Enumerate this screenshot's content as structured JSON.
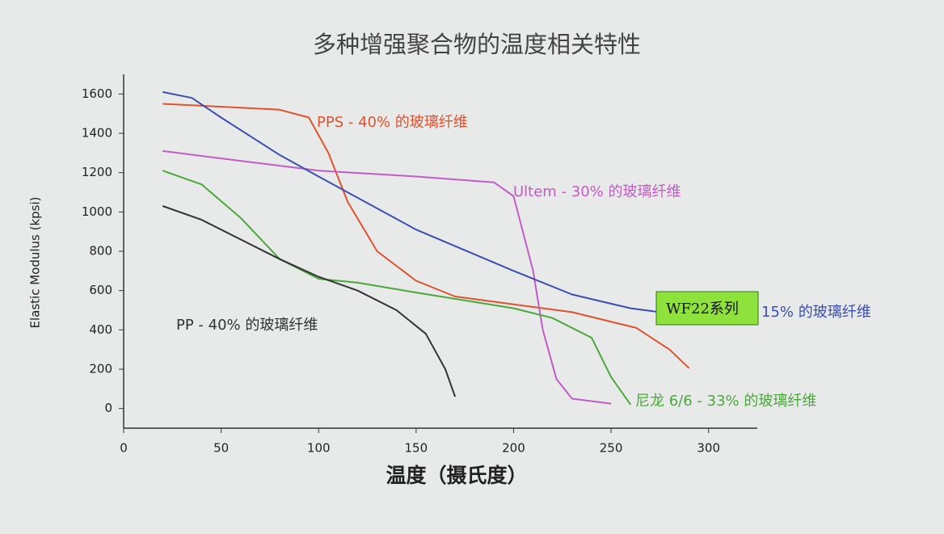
{
  "chart_data": {
    "type": "line",
    "title": "多种增强聚合物的温度相关特性",
    "x_label": "温度（摄氏度）",
    "y_label": "Elastic Modulus (kpsi)",
    "annotation": "WF22系列",
    "xlim": [
      0,
      325
    ],
    "ylim": [
      -100,
      1700
    ],
    "xticks": [
      0,
      50,
      100,
      150,
      200,
      250,
      300
    ],
    "yticks": [
      0,
      200,
      400,
      600,
      800,
      1000,
      1200,
      1400,
      1600
    ],
    "series": [
      {
        "name": "PPS - 40% 的玻璃纤维",
        "color": "#e0522e",
        "x": [
          20,
          40,
          80,
          95,
          105,
          115,
          130,
          150,
          170,
          200,
          230,
          263,
          280,
          290
        ],
        "values": [
          1550,
          1540,
          1520,
          1480,
          1300,
          1050,
          800,
          650,
          570,
          530,
          490,
          410,
          300,
          205
        ]
      },
      {
        "name": "Ultem - 30% 的玻璃纤维",
        "color": "#c25cc4",
        "x": [
          20,
          60,
          100,
          150,
          190,
          200,
          210,
          215,
          222,
          230,
          250
        ],
        "values": [
          1310,
          1260,
          1210,
          1180,
          1150,
          1080,
          700,
          400,
          150,
          50,
          25
        ]
      },
      {
        "name": "15% 的玻璃纤维",
        "color": "#3a4fb0",
        "x": [
          20,
          35,
          50,
          80,
          100,
          150,
          200,
          230,
          260,
          275
        ],
        "values": [
          1610,
          1580,
          1480,
          1290,
          1180,
          910,
          700,
          580,
          510,
          490
        ]
      },
      {
        "name": "尼龙 6/6 - 33% 的玻璃纤维",
        "color": "#4aa83a",
        "x": [
          20,
          40,
          60,
          80,
          100,
          120,
          150,
          200,
          220,
          240,
          250,
          260
        ],
        "values": [
          1210,
          1140,
          970,
          760,
          660,
          640,
          590,
          510,
          460,
          360,
          160,
          20
        ]
      },
      {
        "name": "PP - 40% 的玻璃纤维",
        "color": "#333333",
        "x": [
          20,
          40,
          60,
          80,
          100,
          120,
          140,
          155,
          165,
          170
        ],
        "values": [
          1030,
          960,
          860,
          760,
          670,
          600,
          500,
          380,
          200,
          60
        ]
      }
    ]
  }
}
